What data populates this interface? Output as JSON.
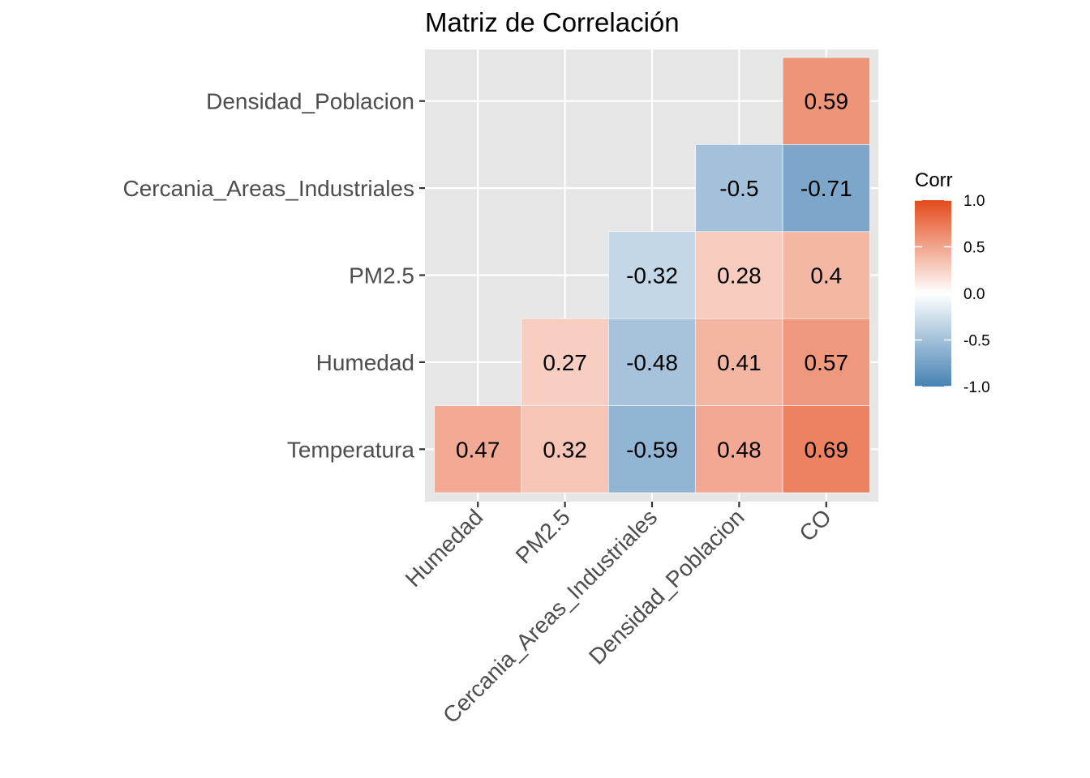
{
  "chart_data": {
    "type": "heatmap",
    "title": "Matriz de Correlación",
    "x_categories": [
      "Humedad",
      "PM2.5",
      "Cercania_Areas_Industriales",
      "Densidad_Poblacion",
      "CO"
    ],
    "y_categories": [
      "Temperatura",
      "Humedad",
      "PM2.5",
      "Cercania_Areas_Industriales",
      "Densidad_Poblacion"
    ],
    "cells": [
      {
        "x": "Humedad",
        "y": "Temperatura",
        "value": 0.47,
        "label": "0.47"
      },
      {
        "x": "PM2.5",
        "y": "Temperatura",
        "value": 0.32,
        "label": "0.32"
      },
      {
        "x": "Cercania_Areas_Industriales",
        "y": "Temperatura",
        "value": -0.59,
        "label": "-0.59"
      },
      {
        "x": "Densidad_Poblacion",
        "y": "Temperatura",
        "value": 0.48,
        "label": "0.48"
      },
      {
        "x": "CO",
        "y": "Temperatura",
        "value": 0.69,
        "label": "0.69"
      },
      {
        "x": "PM2.5",
        "y": "Humedad",
        "value": 0.27,
        "label": "0.27"
      },
      {
        "x": "Cercania_Areas_Industriales",
        "y": "Humedad",
        "value": -0.48,
        "label": "-0.48"
      },
      {
        "x": "Densidad_Poblacion",
        "y": "Humedad",
        "value": 0.41,
        "label": "0.41"
      },
      {
        "x": "CO",
        "y": "Humedad",
        "value": 0.57,
        "label": "0.57"
      },
      {
        "x": "Cercania_Areas_Industriales",
        "y": "PM2.5",
        "value": -0.32,
        "label": "-0.32"
      },
      {
        "x": "Densidad_Poblacion",
        "y": "PM2.5",
        "value": 0.28,
        "label": "0.28"
      },
      {
        "x": "CO",
        "y": "PM2.5",
        "value": 0.4,
        "label": "0.4"
      },
      {
        "x": "Densidad_Poblacion",
        "y": "Cercania_Areas_Industriales",
        "value": -0.5,
        "label": "-0.5"
      },
      {
        "x": "CO",
        "y": "Cercania_Areas_Industriales",
        "value": -0.71,
        "label": "-0.71"
      },
      {
        "x": "CO",
        "y": "Densidad_Poblacion",
        "value": 0.59,
        "label": "0.59"
      }
    ],
    "legend": {
      "title": "Corr",
      "range": [
        -1.0,
        1.0
      ],
      "ticks": [
        1.0,
        0.5,
        0.0,
        -0.5,
        -1.0
      ],
      "tick_labels": [
        "1.0",
        "0.5",
        "0.0",
        "-0.5",
        "-1.0"
      ],
      "placement": "right"
    },
    "colors": {
      "low": "#4682B4",
      "mid": "#FFFFFF",
      "high": "#E34A1B",
      "panel_background": "#E6E6E6",
      "grid": "#FFFFFF"
    },
    "grid": true
  }
}
